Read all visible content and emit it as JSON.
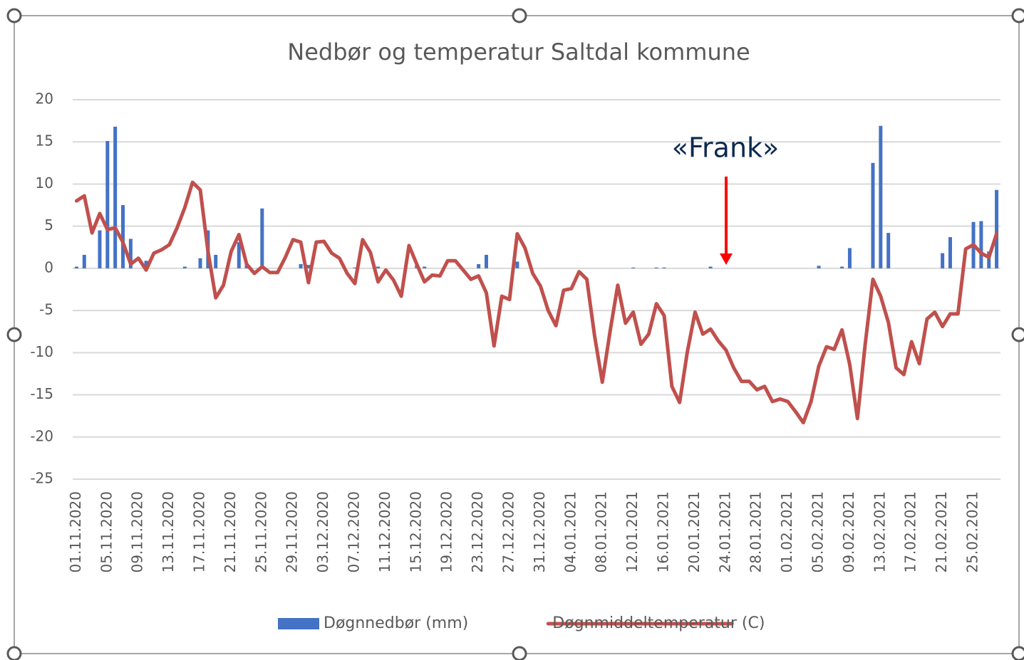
{
  "chart_data": {
    "type": "bar_line",
    "title": "Nedbør og temperatur Saltdal kommune",
    "annotation": "«Frank»",
    "categories": [
      "01.11.2020",
      null,
      null,
      null,
      "05.11.2020",
      null,
      null,
      null,
      "09.11.2020",
      null,
      null,
      null,
      "13.11.2020",
      null,
      null,
      null,
      "17.11.2020",
      null,
      null,
      null,
      "21.11.2020",
      null,
      null,
      null,
      "25.11.2020",
      null,
      null,
      null,
      "29.11.2020",
      null,
      null,
      null,
      "03.12.2020",
      null,
      null,
      null,
      "07.12.2020",
      null,
      null,
      null,
      "11.12.2020",
      null,
      null,
      null,
      "15.12.2020",
      null,
      null,
      null,
      "19.12.2020",
      null,
      null,
      null,
      "23.12.2020",
      null,
      null,
      null,
      "27.12.2020",
      null,
      null,
      null,
      "31.12.2020",
      null,
      null,
      null,
      "04.01.2021",
      null,
      null,
      null,
      "08.01.2021",
      null,
      null,
      null,
      "12.01.2021",
      null,
      null,
      null,
      "16.01.2021",
      null,
      null,
      null,
      "20.01.2021",
      null,
      null,
      null,
      "24.01.2021",
      null,
      null,
      null,
      "28.01.2021",
      null,
      null,
      null,
      "01.02.2021",
      null,
      null,
      null,
      "05.02.2021",
      null,
      null,
      null,
      "09.02.2021",
      null,
      null,
      null,
      "13.02.2021",
      null,
      null,
      null,
      "17.02.2021",
      null,
      null,
      null,
      "21.02.2021",
      null,
      null,
      null,
      "25.02.2021",
      null,
      null,
      null
    ],
    "series": [
      {
        "name": "Døgnnedbør (mm)",
        "type": "bar",
        "color": "#4472c4",
        "values": [
          0.2,
          1.6,
          0,
          4.5,
          15.1,
          16.8,
          7.5,
          3.5,
          0,
          0.9,
          0,
          0,
          0,
          0,
          0.2,
          0,
          1.2,
          4.5,
          1.6,
          0,
          0,
          3.1,
          0.6,
          0,
          7.1,
          0,
          0,
          0,
          0,
          0.5,
          0.4,
          0,
          0,
          0,
          0,
          0,
          0.1,
          0,
          0,
          0.2,
          0,
          0,
          0,
          0,
          0.4,
          0.2,
          0,
          0,
          0,
          0,
          0,
          0,
          0.5,
          1.6,
          0,
          0,
          0,
          0.8,
          0,
          0,
          0,
          0,
          0,
          0,
          0,
          0,
          0,
          0,
          0,
          0,
          0,
          0,
          0.1,
          0,
          0,
          0.1,
          0.1,
          0,
          0,
          0,
          0,
          0,
          0.2,
          0,
          0,
          0,
          0,
          0,
          0,
          0,
          0,
          0,
          0,
          0,
          0,
          0,
          0.3,
          0,
          0,
          0.2,
          2.4,
          0,
          0,
          12.5,
          16.9,
          4.2,
          0,
          0,
          0,
          0,
          0,
          0,
          1.8,
          3.7,
          0,
          0,
          5.5,
          5.6,
          2.0,
          9.3
        ]
      },
      {
        "name": "Døgnmiddeltemperatur (C)",
        "type": "line",
        "color": "#c0504d",
        "values": [
          8.0,
          8.6,
          4.2,
          6.5,
          4.6,
          4.8,
          3.1,
          0.5,
          1.2,
          -0.2,
          1.8,
          2.2,
          2.8,
          4.8,
          7.2,
          10.2,
          9.3,
          2.0,
          -3.5,
          -2.0,
          2.0,
          4.0,
          0.5,
          -0.6,
          0.2,
          -0.5,
          -0.5,
          1.3,
          3.4,
          3.1,
          -1.7,
          3.1,
          3.2,
          1.8,
          1.2,
          -0.6,
          -1.8,
          3.4,
          1.9,
          -1.6,
          -0.2,
          -1.4,
          -3.3,
          2.7,
          0.5,
          -1.6,
          -0.8,
          -0.9,
          0.9,
          0.9,
          -0.2,
          -1.3,
          -0.9,
          -2.9,
          -9.2,
          -3.3,
          -3.7,
          4.1,
          2.4,
          -0.6,
          -2.1,
          -5.0,
          -6.8,
          -2.6,
          -2.4,
          -0.4,
          -1.3,
          -8.0,
          -13.5,
          -7.5,
          -2.0,
          -6.5,
          -5.2,
          -9.0,
          -7.8,
          -4.2,
          -5.6,
          -14.0,
          -15.9,
          -9.9,
          -5.2,
          -7.8,
          -7.2,
          -8.6,
          -9.7,
          -11.8,
          -13.4,
          -13.4,
          -14.4,
          -14.0,
          -15.8,
          -15.5,
          -15.8,
          -17.0,
          -18.3,
          -15.8,
          -11.6,
          -9.3,
          -9.6,
          -7.3,
          -11.4,
          -17.8,
          -9.0,
          -1.3,
          -3.3,
          -6.4,
          -11.8,
          -12.6,
          -8.7,
          -11.3,
          -6.0,
          -5.2,
          -6.9,
          -5.4,
          -5.4,
          2.3,
          2.8,
          1.8,
          1.3,
          4.1
        ]
      }
    ],
    "ylim": [
      -25,
      20
    ],
    "yticks": [
      -25,
      -20,
      -15,
      -10,
      -5,
      0,
      5,
      10,
      15,
      20
    ],
    "grid": true,
    "legend": "bottom"
  }
}
